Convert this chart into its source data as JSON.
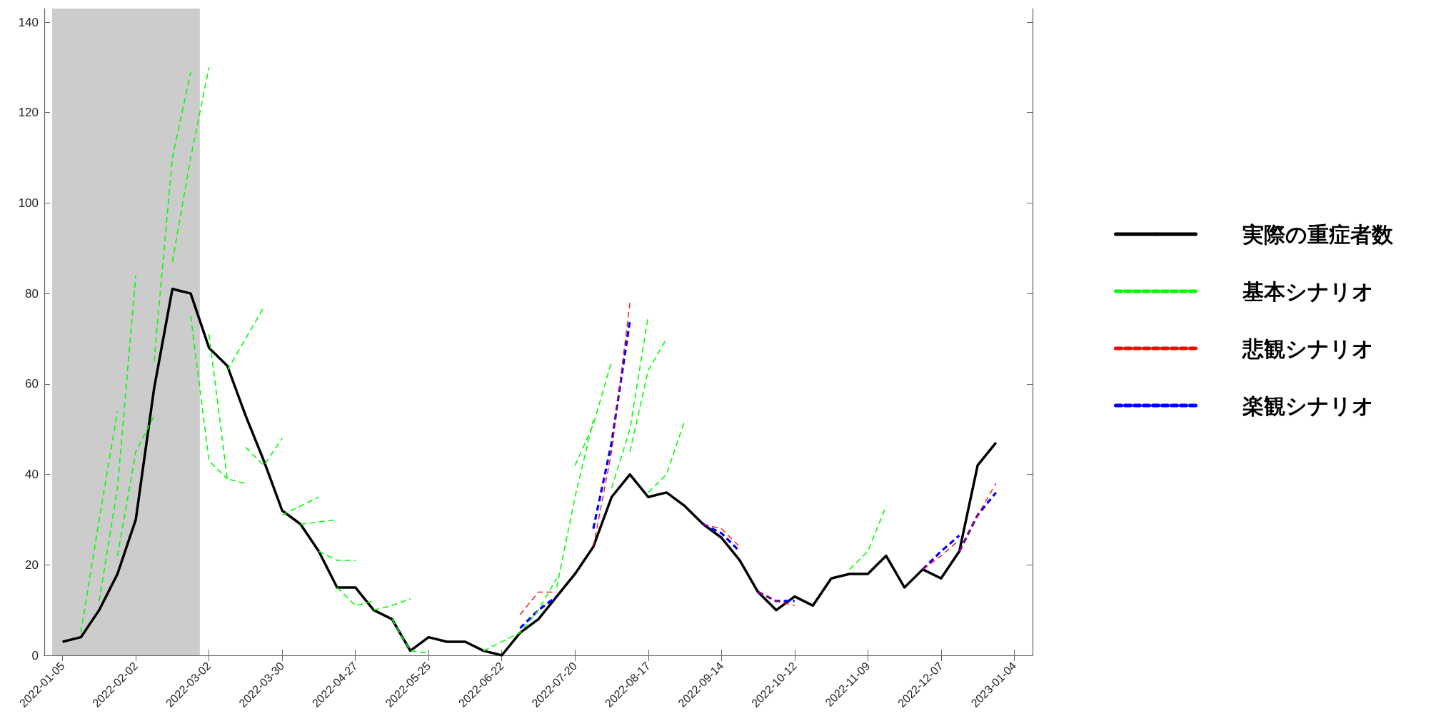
{
  "chart_data": {
    "type": "line",
    "legend": "right",
    "marker": "none",
    "xlim": [
      "2021-12-29",
      "2023-01-11"
    ],
    "ylim": [
      0,
      143
    ],
    "xticks": [
      "2022-01-05",
      "2022-02-02",
      "2022-03-02",
      "2022-03-30",
      "2022-04-27",
      "2022-05-25",
      "2022-06-22",
      "2022-07-20",
      "2022-08-17",
      "2022-09-14",
      "2022-10-12",
      "2022-11-09",
      "2022-12-07",
      "2023-01-04"
    ],
    "yticks": [
      0,
      20,
      40,
      60,
      80,
      100,
      120,
      140
    ],
    "bands": [
      {
        "axis": "x",
        "from": "2022-01-01",
        "to": "2022-02-26T12:00",
        "color": "#cccccc"
      }
    ],
    "series": [
      {
        "name": "実際の重症者数",
        "color": "#000000",
        "line_style": "solid",
        "x": [
          "2022-01-05",
          "2022-01-12",
          "2022-01-19",
          "2022-01-26",
          "2022-02-02",
          "2022-02-09",
          "2022-02-16",
          "2022-02-23",
          "2022-03-02",
          "2022-03-09",
          "2022-03-16",
          "2022-03-23",
          "2022-03-30",
          "2022-04-06",
          "2022-04-13",
          "2022-04-20",
          "2022-04-27",
          "2022-05-04",
          "2022-05-11",
          "2022-05-18",
          "2022-05-25",
          "2022-06-01",
          "2022-06-08",
          "2022-06-15",
          "2022-06-22",
          "2022-06-29",
          "2022-07-06",
          "2022-07-13",
          "2022-07-20",
          "2022-07-27",
          "2022-08-03",
          "2022-08-10",
          "2022-08-17",
          "2022-08-24",
          "2022-08-31",
          "2022-09-07",
          "2022-09-14",
          "2022-09-21",
          "2022-09-28",
          "2022-10-05",
          "2022-10-12",
          "2022-10-19",
          "2022-10-26",
          "2022-11-02",
          "2022-11-09",
          "2022-11-16",
          "2022-11-23",
          "2022-11-30",
          "2022-12-07",
          "2022-12-14",
          "2022-12-21",
          "2022-12-28"
        ],
        "values": [
          3,
          4,
          10,
          18,
          30,
          59,
          81,
          80,
          68,
          64,
          53,
          43,
          32,
          29,
          23,
          15,
          15,
          10,
          8,
          1,
          4,
          3,
          3,
          1,
          0,
          5,
          8,
          13,
          18,
          24,
          35,
          40,
          35,
          36,
          33,
          29,
          26,
          21,
          14,
          10,
          13,
          11,
          17,
          18,
          18,
          22,
          15,
          19,
          17,
          23,
          42,
          47
        ]
      },
      {
        "name": "基本シナリオ",
        "color": "#00ff00",
        "line_style": "dashed",
        "x": [
          "2022-01-12",
          "2022-01-19",
          "2022-01-26"
        ],
        "values": [
          5,
          30,
          54
        ]
      },
      {
        "color": "#00ff00",
        "line_style": "dashed",
        "x": [
          "2022-01-19",
          "2022-01-26",
          "2022-02-02"
        ],
        "values": [
          12,
          37,
          84
        ]
      },
      {
        "color": "#00ff00",
        "line_style": "dashed",
        "x": [
          "2022-01-26",
          "2022-02-02",
          "2022-02-09"
        ],
        "values": [
          22,
          45,
          53
        ]
      },
      {
        "color": "#00ff00",
        "line_style": "dashed",
        "x": [
          "2022-02-09",
          "2022-02-16",
          "2022-02-23"
        ],
        "values": [
          65,
          110,
          129
        ]
      },
      {
        "color": "#00ff00",
        "line_style": "dashed",
        "x": [
          "2022-02-16",
          "2022-02-23",
          "2022-03-02"
        ],
        "values": [
          87,
          110,
          130
        ]
      },
      {
        "color": "#00ff00",
        "line_style": "dashed",
        "x": [
          "2022-02-23",
          "2022-03-02",
          "2022-03-09"
        ],
        "values": [
          75,
          43,
          39
        ]
      },
      {
        "color": "#00ff00",
        "line_style": "dashed",
        "x": [
          "2022-03-02",
          "2022-03-09",
          "2022-03-16"
        ],
        "values": [
          71,
          39,
          38
        ]
      },
      {
        "color": "#00ff00",
        "line_style": "dashed",
        "x": [
          "2022-03-09",
          "2022-03-16",
          "2022-03-23"
        ],
        "values": [
          63,
          70,
          77
        ]
      },
      {
        "color": "#00ff00",
        "line_style": "dashed",
        "x": [
          "2022-03-16",
          "2022-03-23",
          "2022-03-30"
        ],
        "values": [
          46,
          42,
          48
        ]
      },
      {
        "color": "#00ff00",
        "line_style": "dashed",
        "x": [
          "2022-03-30",
          "2022-04-06",
          "2022-04-13"
        ],
        "values": [
          31,
          33,
          35
        ]
      },
      {
        "color": "#00ff00",
        "line_style": "dashed",
        "x": [
          "2022-04-06",
          "2022-04-13",
          "2022-04-20"
        ],
        "values": [
          29,
          29.5,
          30
        ]
      },
      {
        "color": "#00ff00",
        "line_style": "dashed",
        "x": [
          "2022-04-13",
          "2022-04-20",
          "2022-04-27"
        ],
        "values": [
          23,
          21,
          21
        ]
      },
      {
        "color": "#00ff00",
        "line_style": "dashed",
        "x": [
          "2022-04-20",
          "2022-04-27",
          "2022-05-04"
        ],
        "values": [
          15,
          11,
          12
        ]
      },
      {
        "color": "#00ff00",
        "line_style": "dashed",
        "x": [
          "2022-05-04",
          "2022-05-11",
          "2022-05-18"
        ],
        "values": [
          10,
          11,
          12.5
        ]
      },
      {
        "color": "#00ff00",
        "line_style": "dashed",
        "x": [
          "2022-05-11",
          "2022-05-18",
          "2022-05-25"
        ],
        "values": [
          8,
          1,
          0.5
        ]
      },
      {
        "color": "#00ff00",
        "line_style": "dashed",
        "x": [
          "2022-06-15",
          "2022-06-22",
          "2022-06-29",
          "2022-07-06",
          "2022-07-13"
        ],
        "values": [
          1,
          3,
          5,
          10,
          17
        ]
      },
      {
        "color": "#00ff00",
        "line_style": "dashed",
        "x": [
          "2022-07-13",
          "2022-07-20",
          "2022-07-27"
        ],
        "values": [
          15,
          35,
          52
        ]
      },
      {
        "color": "#00ff00",
        "line_style": "dashed",
        "x": [
          "2022-07-20",
          "2022-07-27",
          "2022-08-03"
        ],
        "values": [
          42,
          51,
          65
        ]
      },
      {
        "color": "#00ff00",
        "line_style": "dashed",
        "x": [
          "2022-08-03",
          "2022-08-10",
          "2022-08-17"
        ],
        "values": [
          37,
          50,
          75
        ]
      },
      {
        "color": "#00ff00",
        "line_style": "dashed",
        "x": [
          "2022-08-10",
          "2022-08-17",
          "2022-08-24"
        ],
        "values": [
          45,
          63,
          70
        ]
      },
      {
        "color": "#00ff00",
        "line_style": "dashed",
        "x": [
          "2022-08-17",
          "2022-08-24",
          "2022-08-31"
        ],
        "values": [
          36,
          40,
          52
        ]
      },
      {
        "color": "#00ff00",
        "line_style": "dashed",
        "x": [
          "2022-11-02",
          "2022-11-09",
          "2022-11-16"
        ],
        "values": [
          19,
          23,
          33
        ]
      },
      {
        "name": "悲観シナリオ",
        "color": "#ff0000",
        "line_style": "dashed",
        "x": [
          "2022-06-29",
          "2022-07-06",
          "2022-07-13"
        ],
        "values": [
          9,
          14,
          14
        ]
      },
      {
        "color": "#ff0000",
        "line_style": "dashed",
        "x": [
          "2022-07-27",
          "2022-08-03",
          "2022-08-10"
        ],
        "values": [
          24,
          45,
          78
        ]
      },
      {
        "color": "#ff0000",
        "line_style": "dashed",
        "x": [
          "2022-09-07",
          "2022-09-14",
          "2022-09-21"
        ],
        "values": [
          29,
          28,
          24
        ]
      },
      {
        "color": "#ff0000",
        "line_style": "dashed",
        "x": [
          "2022-09-28",
          "2022-10-05",
          "2022-10-12"
        ],
        "values": [
          14,
          12,
          11
        ]
      },
      {
        "color": "#ff0000",
        "line_style": "dashed",
        "x": [
          "2022-11-30",
          "2022-12-07",
          "2022-12-14"
        ],
        "values": [
          19,
          22,
          25.5
        ]
      },
      {
        "color": "#ff0000",
        "line_style": "dashed",
        "x": [
          "2022-12-14",
          "2022-12-21",
          "2022-12-28"
        ],
        "values": [
          23,
          31,
          38
        ]
      },
      {
        "name": "楽観シナリオ",
        "color": "#0000ff",
        "line_style": "dashed",
        "x": [
          "2022-06-29",
          "2022-07-06",
          "2022-07-13"
        ],
        "values": [
          6,
          10,
          13
        ]
      },
      {
        "color": "#0000ff",
        "line_style": "dashed",
        "x": [
          "2022-07-27",
          "2022-08-03",
          "2022-08-10"
        ],
        "values": [
          28,
          47,
          74
        ]
      },
      {
        "color": "#0000ff",
        "line_style": "dashed",
        "x": [
          "2022-09-07",
          "2022-09-14",
          "2022-09-21"
        ],
        "values": [
          29,
          27,
          23
        ]
      },
      {
        "color": "#0000ff",
        "line_style": "dashed",
        "x": [
          "2022-09-28",
          "2022-10-05",
          "2022-10-12"
        ],
        "values": [
          14,
          12,
          12
        ]
      },
      {
        "color": "#0000ff",
        "line_style": "dashed",
        "x": [
          "2022-11-30",
          "2022-12-07",
          "2022-12-14"
        ],
        "values": [
          19,
          23,
          26.5
        ]
      },
      {
        "color": "#0000ff",
        "line_style": "dashed",
        "x": [
          "2022-12-14",
          "2022-12-21",
          "2022-12-28"
        ],
        "values": [
          23,
          31,
          36
        ]
      }
    ]
  }
}
